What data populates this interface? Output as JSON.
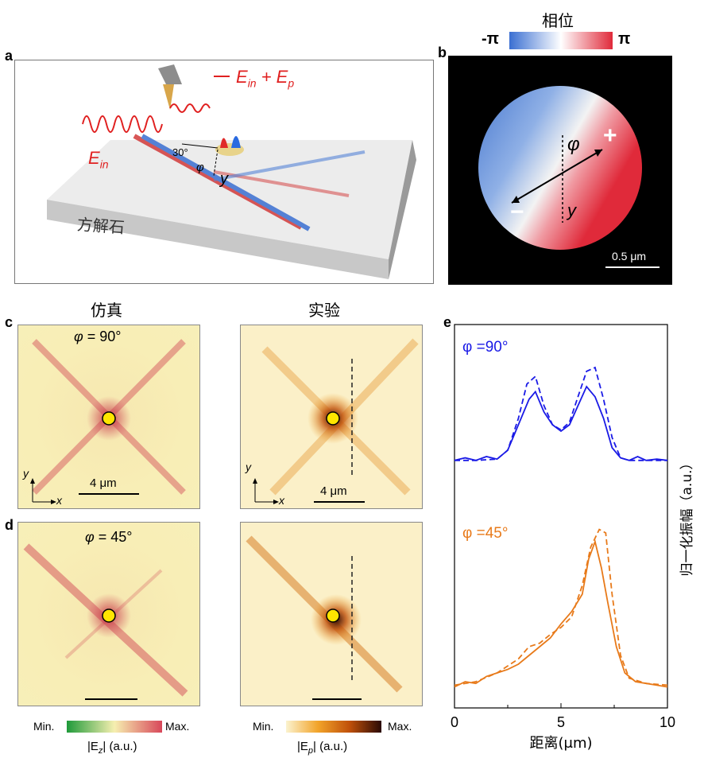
{
  "panels": {
    "a": "a",
    "b": "b",
    "c": "c",
    "d": "d",
    "e": "e"
  },
  "panel_a": {
    "label_out": "E",
    "label_out_sub1": "in",
    "label_out_plus": " + E",
    "label_out_sub2": "p",
    "label_in": "E",
    "label_in_sub": "in",
    "angle": "30°",
    "phi": "φ",
    "y": "y",
    "crystal": "方解石",
    "plus": "+",
    "minus": "−"
  },
  "panel_b": {
    "phase_title": "相位",
    "min": "-π",
    "max": "π",
    "phi": "φ",
    "y": "y",
    "plus": "+",
    "minus": "−",
    "scale": "0.5 μm"
  },
  "columns": {
    "sim": "仿真",
    "exp": "实验"
  },
  "panel_c": {
    "phi_label": "φ",
    "phi_value": " = 90°",
    "scale": "4 μm",
    "axis_x": "x",
    "axis_y": "y"
  },
  "panel_d": {
    "phi_label": "φ",
    "phi_value": " = 45°"
  },
  "colorbars": {
    "sim_min": "Min.",
    "sim_max": "Max.",
    "sim_label": "|E",
    "sim_sub": "z",
    "sim_unit": "| (a.u.)",
    "exp_min": "Min.",
    "exp_max": "Max.",
    "exp_label": "|E",
    "exp_sub": "p",
    "exp_unit": "| (a.u.)",
    "sim_colors": [
      "#1f9a3a",
      "#f6efb0",
      "#d8475a"
    ],
    "exp_colors": [
      "#fbf3cf",
      "#f2a42a",
      "#c0500a",
      "#2a0a05"
    ]
  },
  "chart_data": {
    "type": "line",
    "xlabel": "距离(μm)",
    "ylabel": "归一化振幅（a.u.）",
    "xlim": [
      0,
      10
    ],
    "xticks": [
      "0",
      "5",
      "10"
    ],
    "series": [
      {
        "name": "φ =90°",
        "color": "#1a1ae6",
        "style": "solid",
        "x": [
          0,
          0.5,
          1,
          1.5,
          2,
          2.5,
          3,
          3.5,
          3.8,
          4.2,
          4.6,
          5,
          5.4,
          5.8,
          6.2,
          6.6,
          7,
          7.4,
          7.8,
          8.2,
          8.6,
          9,
          9.5,
          10
        ],
        "y": [
          0.12,
          0.14,
          0.12,
          0.15,
          0.13,
          0.2,
          0.4,
          0.6,
          0.66,
          0.5,
          0.4,
          0.35,
          0.4,
          0.55,
          0.7,
          0.62,
          0.45,
          0.22,
          0.14,
          0.12,
          0.15,
          0.12,
          0.13,
          0.12
        ]
      },
      {
        "name": "φ =90°",
        "color": "#1a1ae6",
        "style": "dashed",
        "x": [
          0,
          1,
          2,
          2.5,
          3,
          3.4,
          3.8,
          4.2,
          4.6,
          5,
          5.4,
          5.8,
          6.2,
          6.6,
          7,
          7.4,
          7.8,
          8.2,
          9,
          10
        ],
        "y": [
          0.12,
          0.12,
          0.13,
          0.2,
          0.45,
          0.72,
          0.78,
          0.55,
          0.4,
          0.36,
          0.42,
          0.62,
          0.82,
          0.85,
          0.6,
          0.3,
          0.14,
          0.12,
          0.12,
          0.12
        ]
      },
      {
        "name": "φ =45°",
        "color": "#e87a1a",
        "style": "solid",
        "x": [
          0,
          0.5,
          1,
          1.5,
          2,
          2.5,
          3,
          3.5,
          4,
          4.5,
          5,
          5.5,
          6,
          6.3,
          6.6,
          6.9,
          7.2,
          7.6,
          8,
          8.5,
          9,
          9.5,
          10
        ],
        "y": [
          0.02,
          0.05,
          0.04,
          0.08,
          0.1,
          0.12,
          0.15,
          0.2,
          0.25,
          0.3,
          0.38,
          0.45,
          0.55,
          0.75,
          0.85,
          0.7,
          0.5,
          0.25,
          0.1,
          0.05,
          0.04,
          0.03,
          0.02
        ]
      },
      {
        "name": "φ =45°",
        "color": "#e87a1a",
        "style": "dashed",
        "x": [
          0,
          1,
          2,
          3,
          3.5,
          4,
          4.5,
          5,
          5.5,
          6,
          6.4,
          6.8,
          7.1,
          7.4,
          7.8,
          8.2,
          9,
          10
        ],
        "y": [
          0.03,
          0.05,
          0.1,
          0.18,
          0.25,
          0.27,
          0.32,
          0.36,
          0.42,
          0.6,
          0.82,
          0.92,
          0.9,
          0.55,
          0.2,
          0.07,
          0.04,
          0.03
        ]
      }
    ]
  }
}
